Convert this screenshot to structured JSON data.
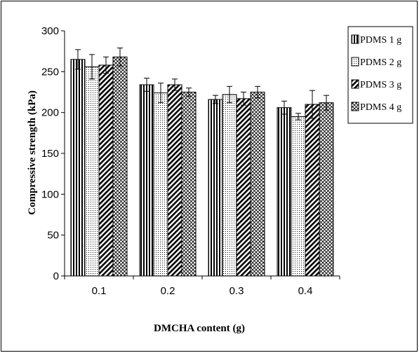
{
  "chart_data": {
    "type": "bar",
    "title": "",
    "xlabel": "DMCHA content (g)",
    "ylabel": "Compressive strength (kPa)",
    "categories": [
      "0.1",
      "0.2",
      "0.3",
      "0.4"
    ],
    "ylim": [
      0,
      300
    ],
    "yticks": [
      0,
      50,
      100,
      150,
      200,
      250,
      300
    ],
    "legend_position": "top-right",
    "error_bars": true,
    "series": [
      {
        "name": "PDMS 1 g",
        "pattern": "vertical-stripes",
        "values": [
          265,
          234,
          216,
          206
        ],
        "errors": [
          12,
          8,
          5,
          8
        ]
      },
      {
        "name": "PDMS 2 g",
        "pattern": "dots",
        "values": [
          256,
          224,
          222,
          195
        ],
        "errors": [
          15,
          12,
          10,
          4
        ]
      },
      {
        "name": "PDMS 3 g",
        "pattern": "diagonal-stripes",
        "values": [
          258,
          234,
          217,
          210
        ],
        "errors": [
          10,
          7,
          8,
          17
        ]
      },
      {
        "name": "PDMS 4 g",
        "pattern": "crosshatch",
        "values": [
          268,
          225,
          225,
          212
        ],
        "errors": [
          11,
          5,
          7,
          9
        ]
      }
    ]
  }
}
